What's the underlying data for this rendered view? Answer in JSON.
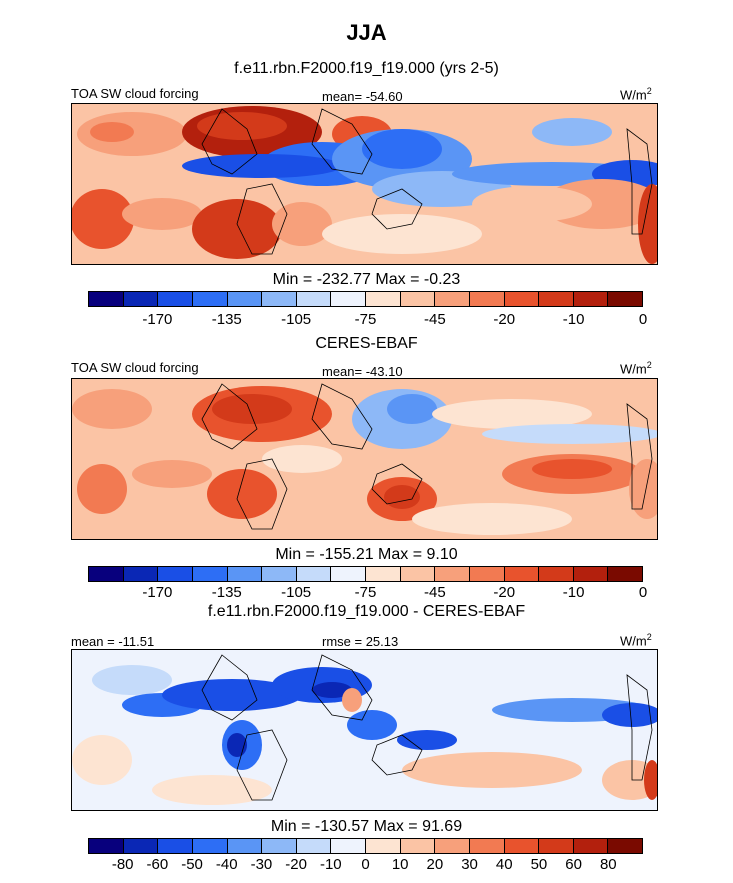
{
  "title": "JJA",
  "colors": {
    "diverging_scale": [
      "#08007d",
      "#0a27b5",
      "#1a4fe6",
      "#2d6ef5",
      "#5a95f5",
      "#8db8f7",
      "#c5dbfa",
      "#eef3fd",
      "#fde4d2",
      "#fbc4a5",
      "#f7a07b",
      "#f27a52",
      "#e8532d",
      "#d33a1a",
      "#b3200d",
      "#7a0a00"
    ],
    "coast": "#000000"
  },
  "panels": [
    {
      "title": "f.e11.rbn.F2000.f19_f19.000 (yrs 2-5)",
      "left_label": "TOA SW cloud forcing",
      "center_label": "mean= -54.60",
      "unit": "W/m",
      "unit_sup": "2",
      "stats": "Min = -232.77 Max =  -0.23",
      "tick_labels": [
        "-170",
        "-135",
        "-105",
        "-75",
        "-45",
        "-20",
        "-10",
        "0"
      ]
    },
    {
      "title": "CERES-EBAF",
      "left_label": "TOA SW cloud forcing",
      "center_label": "mean= -43.10",
      "unit": "W/m",
      "unit_sup": "2",
      "stats": "Min = -155.21 Max =   9.10",
      "tick_labels": [
        "-170",
        "-135",
        "-105",
        "-75",
        "-45",
        "-20",
        "-10",
        "0"
      ]
    },
    {
      "title": "f.e11.rbn.F2000.f19_f19.000 - CERES-EBAF",
      "left_label": "mean = -11.51",
      "center_label": "rmse =  25.13",
      "unit": "W/m",
      "unit_sup": "2",
      "stats": "Min = -130.57 Max =  91.69",
      "tick_labels": [
        "-80",
        "-60",
        "-50",
        "-40",
        "-30",
        "-20",
        "-10",
        "0",
        "10",
        "20",
        "30",
        "40",
        "50",
        "60",
        "80"
      ]
    }
  ]
}
